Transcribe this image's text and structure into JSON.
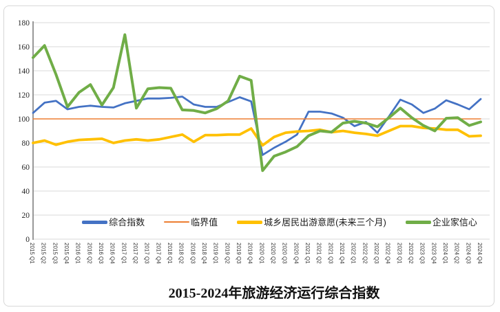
{
  "title": "2015-2024年旅游经济运行综合指数",
  "chart_data": {
    "type": "line",
    "categories": [
      "2015 Q1",
      "2015 Q2",
      "2015 Q3",
      "2015 Q4",
      "2016 Q1",
      "2016 Q2",
      "2016 Q3",
      "2016 Q4",
      "2017 Q1",
      "2017 Q2",
      "2017 Q3",
      "2017 Q4",
      "2018 Q1",
      "2018 Q2",
      "2018 Q3",
      "2018 Q4",
      "2019 Q1",
      "2019 Q2",
      "2019 Q3",
      "2019 Q4",
      "2020 Q1",
      "2020 Q2",
      "2020 Q3",
      "2020 Q4",
      "2021 Q1",
      "2021 Q2",
      "2021 Q3",
      "2021 Q4",
      "2022 Q1",
      "2022 Q2",
      "2022 Q3",
      "2022 Q4",
      "2023 Q1",
      "2023 Q2",
      "2023 Q3",
      "2023 Q4",
      "2024 Q1",
      "2024 Q2",
      "2024 Q3",
      "2024 Q4"
    ],
    "ylim": [
      0,
      180
    ],
    "ytick_step": 20,
    "yticks": [
      "0",
      "20",
      "40",
      "60",
      "80",
      "100",
      "120",
      "140",
      "160",
      "180"
    ],
    "grid": true,
    "legend_position": "bottom",
    "gridline_color": "#d9d9d9",
    "axis_color": "#7f7f7f",
    "tick_label_color": "#333333",
    "series": [
      {
        "name": "综合指数",
        "color": "#4472C4",
        "line_width": 2.8,
        "values": [
          105,
          113.5,
          115,
          108,
          110,
          111,
          110,
          109.5,
          113,
          115,
          117,
          117,
          117.5,
          118.5,
          112,
          110,
          110,
          114,
          118,
          114.5,
          70,
          76,
          81,
          87,
          106,
          106,
          104.5,
          101,
          94,
          97.5,
          88.5,
          102,
          116,
          112,
          105,
          108.5,
          115.5,
          112,
          108,
          116.5
        ]
      },
      {
        "name": "临界值",
        "color": "#ED7D31",
        "line_width": 1.4,
        "values": [
          100,
          100,
          100,
          100,
          100,
          100,
          100,
          100,
          100,
          100,
          100,
          100,
          100,
          100,
          100,
          100,
          100,
          100,
          100,
          100,
          100,
          100,
          100,
          100,
          100,
          100,
          100,
          100,
          100,
          100,
          100,
          100,
          100,
          100,
          100,
          100,
          100,
          100,
          100,
          100
        ]
      },
      {
        "name": "城乡居民出游意愿(未来三个月)",
        "color": "#FFC000",
        "line_width": 3.8,
        "values": [
          80,
          82,
          78.5,
          81,
          82.5,
          83,
          83.5,
          80,
          82,
          83,
          82,
          83,
          85,
          87,
          81,
          86.5,
          86.5,
          87,
          87,
          92,
          78,
          85,
          88.5,
          89.5,
          90,
          91,
          89,
          90,
          88.5,
          87.5,
          86,
          90,
          94,
          94,
          92.5,
          92,
          91,
          91,
          85.5,
          86
        ]
      },
      {
        "name": "企业家信心",
        "color": "#70AD47",
        "line_width": 4,
        "values": [
          151,
          161,
          137,
          110,
          122,
          128.5,
          111.5,
          126,
          170,
          109,
          125,
          126,
          125.5,
          107.5,
          107,
          105,
          108.5,
          115,
          135.5,
          132,
          57,
          69,
          72.5,
          77,
          86,
          90,
          89,
          96.5,
          98,
          96.5,
          93.5,
          101,
          109,
          101,
          94.5,
          90,
          100.5,
          101,
          94.5,
          97.5
        ]
      }
    ]
  }
}
